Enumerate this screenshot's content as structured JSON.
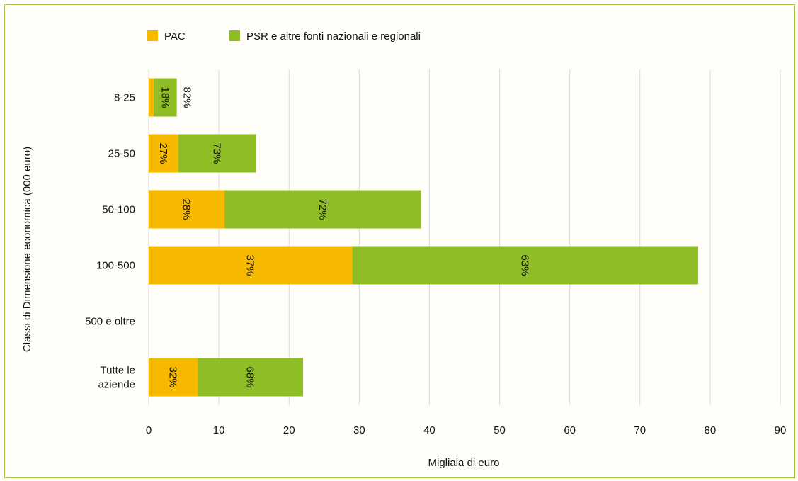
{
  "chart_data": {
    "type": "bar",
    "orientation": "horizontal",
    "stacked": true,
    "categories": [
      "8-25",
      "25-50",
      "50-100",
      "100-500",
      "500 e oltre",
      "Tutte le aziende"
    ],
    "series": [
      {
        "name": "PAC",
        "color": "#f7b800",
        "values": [
          0.7,
          4.2,
          10.8,
          29.0,
          null,
          7.0
        ],
        "labels": [
          "",
          "27%",
          "28%",
          "37%",
          "",
          "32%"
        ]
      },
      {
        "name": "PSR e altre fonti nazionali e regionali",
        "color": "#8fbd26",
        "values": [
          3.3,
          11.1,
          28.0,
          49.3,
          null,
          15.0
        ],
        "labels": [
          "18%",
          "73%",
          "72%",
          "63%",
          "",
          "68%"
        ]
      }
    ],
    "outside_labels": [
      "82%",
      "",
      "",
      "",
      "",
      ""
    ],
    "xlabel": "Migliaia di euro",
    "ylabel": "Classi di Dimensione economica (000 euro)",
    "xlim": [
      0,
      90
    ],
    "xticks": [
      "0",
      "10",
      "20",
      "30",
      "40",
      "50",
      "60",
      "70",
      "80",
      "90"
    ],
    "grid": true,
    "legend": "top-left"
  }
}
